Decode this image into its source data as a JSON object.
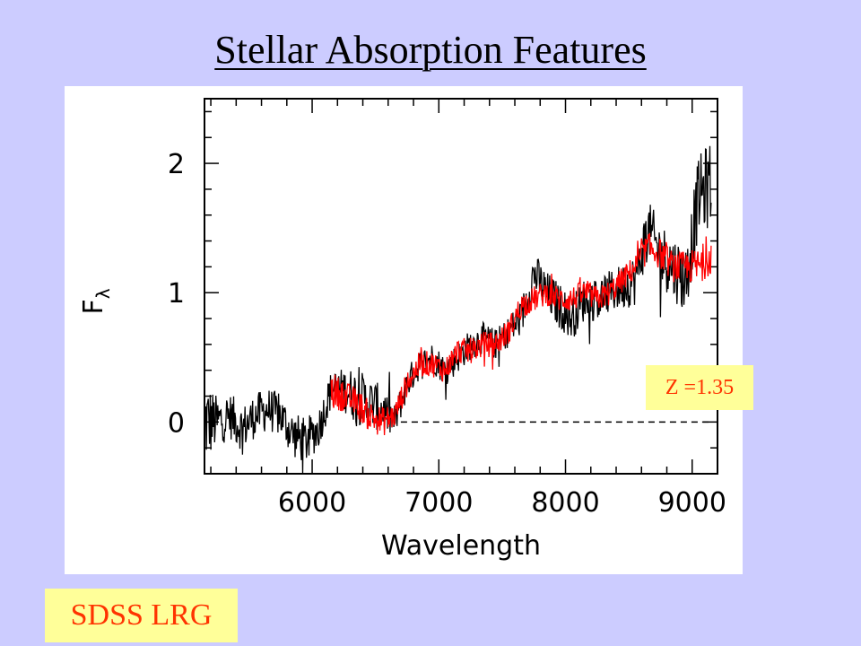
{
  "slide": {
    "title": "Stellar Absorption Features",
    "redshift_label": "Z =1.35",
    "sample_label": "SDSS LRG",
    "badge_bg": "#ffff99",
    "badge_text_color": "#ff3300",
    "background": "#ccccff"
  },
  "chart_data": {
    "type": "line",
    "title": "",
    "xlabel": "Wavelength",
    "ylabel": "F",
    "ylabel_subscript": "λ",
    "xlim": [
      5150,
      9200
    ],
    "ylim": [
      -0.4,
      2.5
    ],
    "x_ticks": [
      6000,
      7000,
      8000,
      9000
    ],
    "x_tick_labels": [
      "6000",
      "7000",
      "8000",
      "9000"
    ],
    "y_ticks": [
      0,
      1,
      2
    ],
    "y_tick_labels": [
      "0",
      "1",
      "2"
    ],
    "reference_line": {
      "y": 0,
      "x_start": 6700,
      "x_end": 9150,
      "style": "dashed"
    },
    "grid": false,
    "legend": "none",
    "series": [
      {
        "color": "#000000",
        "x": [
          5150,
          5250,
          5350,
          5450,
          5550,
          5650,
          5750,
          5850,
          5950,
          6050,
          6150,
          6250,
          6350,
          6450,
          6550,
          6650,
          6750,
          6850,
          6950,
          7050,
          7150,
          7250,
          7350,
          7450,
          7550,
          7650,
          7750,
          7850,
          7950,
          8050,
          8150,
          8250,
          8350,
          8450,
          8550,
          8650,
          8750,
          8850,
          8950,
          9050,
          9150
        ],
        "y": [
          0.0,
          0.0,
          0.05,
          -0.05,
          0.05,
          0.1,
          0.05,
          -0.1,
          -0.15,
          -0.05,
          0.25,
          0.25,
          0.2,
          0.15,
          0.1,
          0.0,
          0.3,
          0.45,
          0.5,
          0.4,
          0.5,
          0.6,
          0.65,
          0.6,
          0.7,
          0.8,
          1.15,
          1.0,
          0.9,
          0.8,
          0.95,
          0.95,
          1.0,
          1.05,
          1.1,
          1.5,
          1.3,
          1.2,
          1.1,
          1.75,
          1.85
        ],
        "noise": [
          0.35,
          0.2,
          0.18,
          0.18,
          0.17,
          0.17,
          0.17,
          0.18,
          0.18,
          0.16,
          0.15,
          0.17,
          0.22,
          0.2,
          0.18,
          0.14,
          0.12,
          0.12,
          0.12,
          0.12,
          0.12,
          0.12,
          0.12,
          0.12,
          0.12,
          0.15,
          0.17,
          0.17,
          0.18,
          0.17,
          0.17,
          0.17,
          0.17,
          0.18,
          0.2,
          0.22,
          0.25,
          0.25,
          0.28,
          0.3,
          0.35
        ]
      },
      {
        "color": "#ff0000",
        "x": [
          6150,
          6250,
          6350,
          6450,
          6550,
          6650,
          6750,
          6850,
          6950,
          7050,
          7150,
          7250,
          7350,
          7450,
          7550,
          7650,
          7750,
          7850,
          7950,
          8050,
          8150,
          8250,
          8350,
          8450,
          8550,
          8650,
          8750,
          8850,
          8950,
          9050,
          9150
        ],
        "y": [
          0.25,
          0.2,
          0.15,
          0.05,
          0.0,
          0.05,
          0.3,
          0.45,
          0.45,
          0.4,
          0.55,
          0.55,
          0.6,
          0.6,
          0.7,
          0.9,
          0.95,
          1.0,
          0.95,
          0.95,
          1.0,
          0.95,
          1.0,
          1.1,
          1.2,
          1.35,
          1.3,
          1.2,
          1.2,
          1.2,
          1.3
        ],
        "noise": [
          0.15,
          0.12,
          0.12,
          0.12,
          0.12,
          0.1,
          0.1,
          0.1,
          0.1,
          0.1,
          0.1,
          0.1,
          0.1,
          0.1,
          0.1,
          0.1,
          0.1,
          0.1,
          0.1,
          0.1,
          0.1,
          0.1,
          0.1,
          0.1,
          0.1,
          0.12,
          0.12,
          0.12,
          0.12,
          0.15,
          0.15
        ]
      }
    ]
  }
}
